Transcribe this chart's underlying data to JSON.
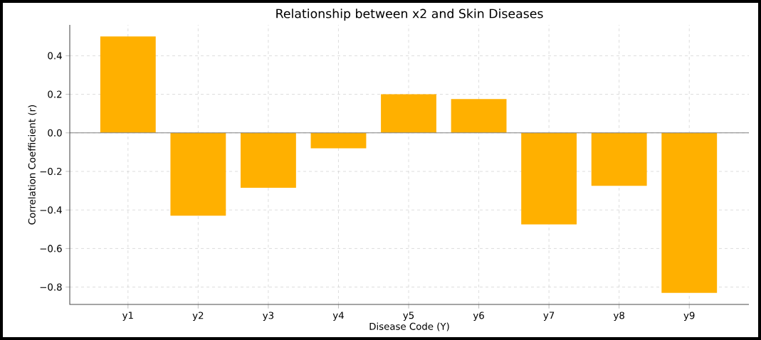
{
  "chart_data": {
    "type": "bar",
    "title": "Relationship between x2 and Skin Diseases",
    "xlabel": "Disease Code (Y)",
    "ylabel": "Correlation Coefficient (r)",
    "categories": [
      "y1",
      "y2",
      "y3",
      "y4",
      "y5",
      "y6",
      "y7",
      "y8",
      "y9"
    ],
    "values": [
      0.5,
      -0.43,
      -0.285,
      -0.08,
      0.2,
      0.175,
      -0.475,
      -0.275,
      -0.83
    ],
    "color": "#ffb000",
    "ylim": [
      -0.89,
      0.56
    ],
    "yticks": [
      {
        "value": -0.8,
        "label": "−0.8"
      },
      {
        "value": -0.6,
        "label": "−0.6"
      },
      {
        "value": -0.4,
        "label": "−0.4"
      },
      {
        "value": -0.2,
        "label": "−0.2"
      },
      {
        "value": 0.0,
        "label": "0.0"
      },
      {
        "value": 0.2,
        "label": "0.2"
      },
      {
        "value": 0.4,
        "label": "0.4"
      }
    ],
    "grid": true,
    "ref_lines": [
      {
        "axis": "y",
        "value": 0,
        "color": "#808080"
      }
    ]
  }
}
